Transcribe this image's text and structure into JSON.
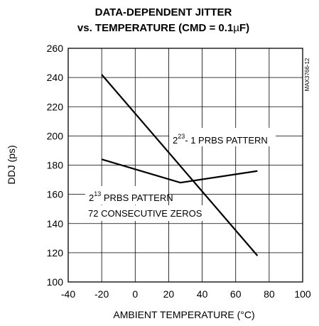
{
  "chart_data": {
    "type": "line",
    "title_line1": "DATA-DEPENDENT JITTER",
    "title_line2": "vs. TEMPERATURE (CMD = 0.1µF)",
    "part_number": "MAX3766-12",
    "xlabel": "AMBIENT TEMPERATURE (°C)",
    "ylabel": "DDJ (ps)",
    "xlim": [
      -40,
      100
    ],
    "ylim": [
      100,
      260
    ],
    "x_ticks": [
      -40,
      -20,
      0,
      20,
      40,
      60,
      80,
      100
    ],
    "y_ticks": [
      100,
      120,
      140,
      160,
      180,
      200,
      220,
      240,
      260
    ],
    "grid": true,
    "series": [
      {
        "id": "prbs23",
        "x": [
          -20,
          73
        ],
        "y": [
          242,
          118
        ]
      },
      {
        "id": "prbs13",
        "x": [
          -20,
          27,
          73
        ],
        "y": [
          184,
          168,
          176
        ]
      }
    ],
    "annotations": [
      {
        "id": "ann23",
        "base": "2",
        "sup": "23",
        "text": "- 1 PRBS PATTERN"
      },
      {
        "id": "ann13a",
        "base": "2",
        "sup": "13",
        "text": " PRBS PATTERN"
      },
      {
        "id": "ann13b",
        "text": "72 CONSECUTIVE ZEROS"
      }
    ]
  }
}
